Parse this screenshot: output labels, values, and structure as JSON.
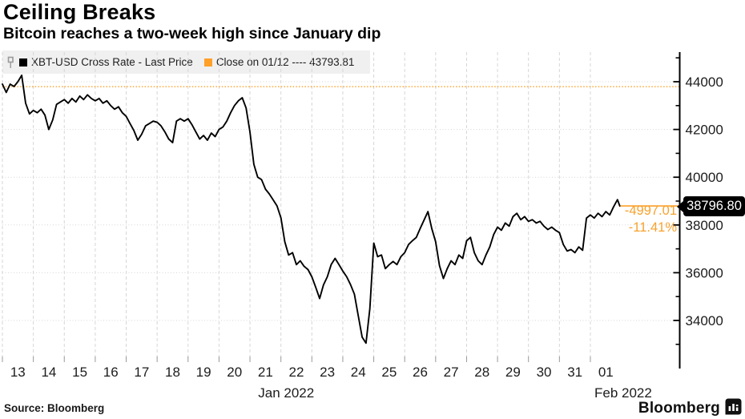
{
  "header": {
    "title": "Ceiling Breaks",
    "subtitle": "Bitcoin reaches a two-week high since January dip"
  },
  "legend": {
    "items": [
      {
        "swatch_color": "#000000",
        "label": "XBT-USD Cross Rate - Last Price"
      },
      {
        "swatch_color": "#ffa028",
        "label": "Close on 01/12 ---- 43793.81"
      }
    ]
  },
  "annotations": {
    "last_price_label": "38796.80",
    "change_abs": "-4997.01",
    "change_pct": "-11.41%"
  },
  "source": "Source: Bloomberg",
  "brand": {
    "logo_text": "Bloomberg"
  },
  "colors": {
    "series": "#000000",
    "accent_orange": "#ffa028",
    "legend_bg": "#f0f0f0",
    "grid": "#d6d6d6",
    "axis": "#000000",
    "tick": "#999999",
    "label": "#1c1c1c",
    "bubble_bg": "#000000",
    "bubble_text": "#ffffff"
  },
  "chart_data": {
    "type": "line",
    "title": "Ceiling Breaks",
    "series_name": "XBT-USD Cross Rate - Last Price",
    "x_start_date": "2022-01-13",
    "x_end_date": "2022-02-01",
    "sample_interval_days": 0.125,
    "prices": [
      43900,
      43550,
      43900,
      43800,
      44000,
      44270,
      43100,
      42650,
      42800,
      42700,
      42850,
      42600,
      42000,
      42400,
      43050,
      43150,
      43250,
      43100,
      43300,
      43150,
      43400,
      43250,
      43450,
      43300,
      43200,
      43300,
      43100,
      43200,
      43000,
      42850,
      42950,
      42700,
      42550,
      42250,
      41950,
      41550,
      41800,
      42150,
      42250,
      42350,
      42300,
      42150,
      41900,
      41600,
      41450,
      42350,
      42450,
      42350,
      42450,
      42200,
      41900,
      41600,
      41750,
      41550,
      41850,
      41700,
      42000,
      42100,
      42350,
      42700,
      43000,
      43200,
      43330,
      42900,
      41900,
      40540,
      40000,
      39900,
      39500,
      39300,
      39050,
      38800,
      38300,
      37300,
      36740,
      36840,
      36340,
      36500,
      36270,
      36130,
      35830,
      35390,
      34920,
      35490,
      35830,
      36340,
      36600,
      36340,
      36070,
      35830,
      35500,
      35100,
      34200,
      33300,
      33050,
      34500,
      37240,
      36670,
      36740,
      36170,
      36340,
      36470,
      36340,
      36670,
      36840,
      37180,
      37340,
      37480,
      37850,
      38200,
      38560,
      37850,
      37300,
      36300,
      35760,
      36170,
      36500,
      36340,
      36740,
      36600,
      37340,
      37480,
      36840,
      36500,
      36340,
      36740,
      37080,
      37600,
      37910,
      37780,
      38080,
      37950,
      38350,
      38490,
      38220,
      38350,
      38150,
      38220,
      38080,
      38150,
      37950,
      37810,
      37910,
      37780,
      37680,
      37180,
      36910,
      36970,
      36840,
      37080,
      36940,
      38290,
      38420,
      38290,
      38490,
      38350,
      38560,
      38420,
      38760,
      39060
    ],
    "final_point": {
      "day_offset": 19.95,
      "price": 38796.8
    },
    "last_price": 38796.8,
    "change_from_close": {
      "abs": -4997.01,
      "pct": -11.41
    },
    "reference_line": {
      "label": "Close on 01/12",
      "value": 43793.81,
      "style": "dotted",
      "color": "#ffa028"
    },
    "y_ticks": [
      34000,
      36000,
      38000,
      40000,
      42000,
      44000
    ],
    "y_minor_ticks": [
      33000,
      35000,
      37000,
      39000,
      41000,
      43000,
      45000
    ],
    "ylim": [
      31990,
      45240
    ],
    "x_day_labels": [
      "13",
      "14",
      "15",
      "16",
      "17",
      "18",
      "19",
      "20",
      "21",
      "22",
      "23",
      "24",
      "25",
      "26",
      "27",
      "28",
      "29",
      "30",
      "31",
      "01"
    ],
    "x_month_labels": [
      {
        "label": "Jan 2022",
        "center_day": 9.17
      },
      {
        "label": "Feb 2022",
        "center_day": 20.06
      }
    ],
    "grid": true,
    "legend_position": "top-left",
    "axis_side": "right"
  }
}
